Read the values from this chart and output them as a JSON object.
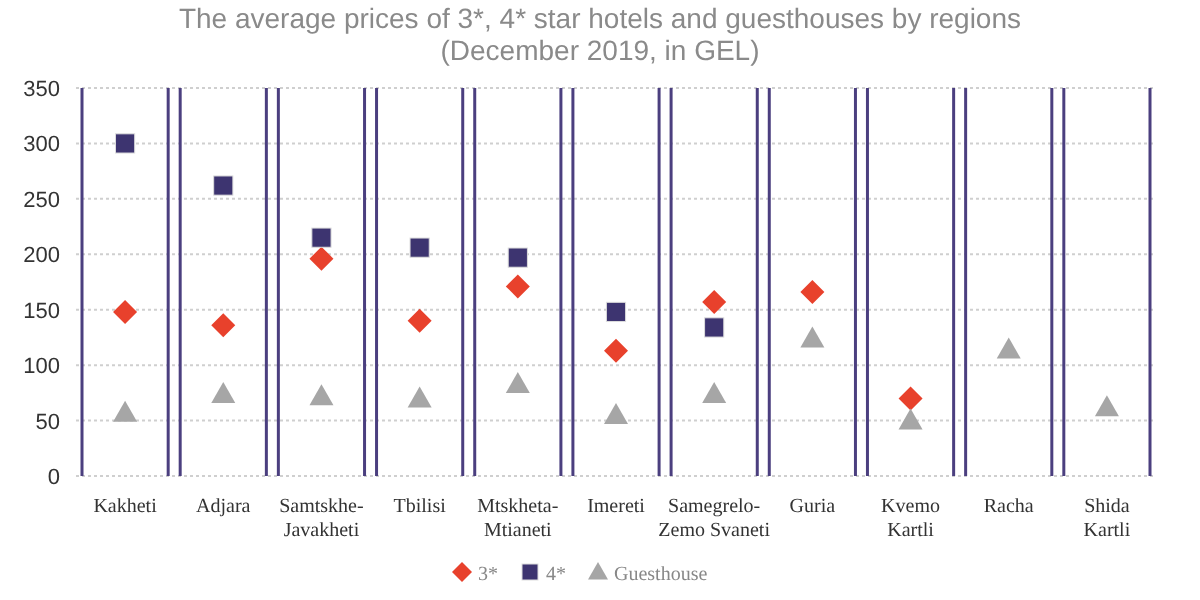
{
  "chart_data": {
    "type": "scatter",
    "title": "The average prices of 3*, 4* star hotels and guesthouses by regions\n(December 2019, in GEL)",
    "categories": [
      "Kakheti",
      "Adjara",
      "Samtskhe-\nJavakheti",
      "Tbilisi",
      "Mtskheta-\nMtianeti",
      "Imereti",
      "Samegrelo-\nZemo Svaneti",
      "Guria",
      "Kvemo\nKartli",
      "Racha",
      "Shida\nKartli"
    ],
    "series": [
      {
        "name": "3*",
        "color": "#e8412c",
        "marker": "diamond",
        "values": [
          148,
          136,
          196,
          140,
          171,
          113,
          157,
          166,
          70,
          null,
          null
        ]
      },
      {
        "name": "4*",
        "color": "#3d3470",
        "marker": "square",
        "values": [
          300,
          262,
          215,
          206,
          197,
          148,
          134,
          null,
          null,
          null,
          null
        ]
      },
      {
        "name": "Guesthouse",
        "color": "#a6a6a6",
        "marker": "triangle",
        "values": [
          57,
          74,
          72,
          70,
          83,
          55,
          74,
          124,
          50,
          114,
          62
        ]
      }
    ],
    "ylim": [
      0,
      350
    ],
    "yticks": [
      0,
      50,
      100,
      150,
      200,
      250,
      300,
      350
    ],
    "grid": true,
    "legend": "bottom"
  }
}
